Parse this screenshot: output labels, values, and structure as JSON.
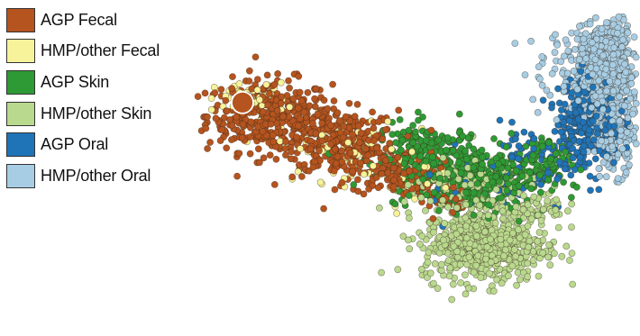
{
  "chart_data": {
    "type": "scatter",
    "title": "",
    "xlabel": "",
    "ylabel": "",
    "grid": false,
    "legend_position": "top-left",
    "highlight_marker": {
      "series": "AGP Fecal",
      "x": -0.74,
      "y": 0.53
    },
    "series": [
      {
        "name": "AGP Fecal",
        "color": "#b5541f",
        "clusters": [
          {
            "cx": -0.62,
            "cy": 0.45,
            "sx": 0.14,
            "sy": 0.11,
            "n": 380
          },
          {
            "cx": -0.3,
            "cy": 0.28,
            "sx": 0.13,
            "sy": 0.1,
            "n": 300
          },
          {
            "cx": -0.05,
            "cy": 0.1,
            "sx": 0.1,
            "sy": 0.07,
            "n": 140
          },
          {
            "cx": 0.15,
            "cy": -0.05,
            "sx": 0.07,
            "sy": 0.06,
            "n": 40
          }
        ]
      },
      {
        "name": "HMP/other Fecal",
        "color": "#f6f39a",
        "clusters": [
          {
            "cx": -0.7,
            "cy": 0.55,
            "sx": 0.08,
            "sy": 0.05,
            "n": 70
          },
          {
            "cx": -0.3,
            "cy": 0.25,
            "sx": 0.14,
            "sy": 0.1,
            "n": 60
          },
          {
            "cx": 0.0,
            "cy": 0.1,
            "sx": 0.1,
            "sy": 0.08,
            "n": 40
          }
        ]
      },
      {
        "name": "AGP Skin",
        "color": "#2e9a35",
        "clusters": [
          {
            "cx": 0.1,
            "cy": 0.2,
            "sx": 0.12,
            "sy": 0.1,
            "n": 230
          },
          {
            "cx": 0.35,
            "cy": 0.05,
            "sx": 0.14,
            "sy": 0.1,
            "n": 270
          },
          {
            "cx": 0.6,
            "cy": 0.15,
            "sx": 0.07,
            "sy": 0.08,
            "n": 70
          }
        ]
      },
      {
        "name": "HMP/other Skin",
        "color": "#b9d98e",
        "clusters": [
          {
            "cx": 0.35,
            "cy": -0.35,
            "sx": 0.14,
            "sy": 0.11,
            "n": 560
          },
          {
            "cx": 0.25,
            "cy": 0.0,
            "sx": 0.13,
            "sy": 0.09,
            "n": 170
          },
          {
            "cx": 0.55,
            "cy": -0.1,
            "sx": 0.08,
            "sy": 0.08,
            "n": 70
          }
        ]
      },
      {
        "name": "AGP Oral",
        "color": "#1f74b8",
        "clusters": [
          {
            "cx": 0.82,
            "cy": 0.42,
            "sx": 0.07,
            "sy": 0.14,
            "n": 270
          },
          {
            "cx": 0.62,
            "cy": 0.2,
            "sx": 0.1,
            "sy": 0.1,
            "n": 70
          },
          {
            "cx": 0.4,
            "cy": 0.05,
            "sx": 0.18,
            "sy": 0.12,
            "n": 40
          }
        ]
      },
      {
        "name": "HMP/other Oral",
        "color": "#a7cde4",
        "clusters": [
          {
            "cx": 0.9,
            "cy": 0.75,
            "sx": 0.07,
            "sy": 0.13,
            "n": 650
          },
          {
            "cx": 0.92,
            "cy": 0.38,
            "sx": 0.06,
            "sy": 0.14,
            "n": 270
          },
          {
            "cx": 0.75,
            "cy": 0.75,
            "sx": 0.12,
            "sy": 0.12,
            "n": 60
          }
        ]
      }
    ],
    "x_range": [
      -1.0,
      1.05
    ],
    "y_range": [
      -0.9,
      1.05
    ]
  }
}
